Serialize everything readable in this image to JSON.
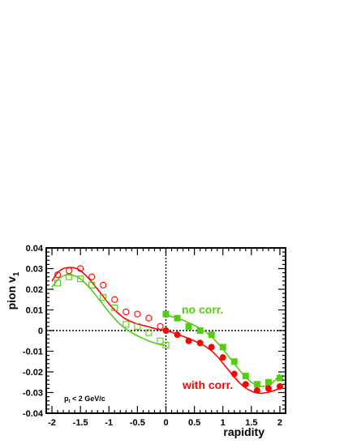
{
  "chart_data": {
    "type": "scatter",
    "xlabel": "rapidity",
    "ylabel_main": "pion v",
    "ylabel_sub": "1",
    "xlim": [
      -2.1,
      2.1
    ],
    "ylim": [
      -0.04,
      0.04
    ],
    "x_ticks": [
      "-2",
      "-1.5",
      "-1",
      "-0.5",
      "0",
      "0.5",
      "1",
      "1.5",
      "2"
    ],
    "x_tick_values": [
      -2,
      -1.5,
      -1,
      -0.5,
      0,
      0.5,
      1,
      1.5,
      2
    ],
    "y_ticks": [
      "0.04",
      "0.03",
      "0.02",
      "0.01",
      "0",
      "-0.01",
      "-0.02",
      "-0.03",
      "-0.04"
    ],
    "y_tick_values": [
      0.04,
      0.03,
      0.02,
      0.01,
      0,
      -0.01,
      -0.02,
      -0.03,
      -0.04
    ],
    "dotted_reference_lines": {
      "x": 0,
      "y": 0
    },
    "colors": {
      "red": "#ff0000",
      "green": "#55cc11",
      "axis": "#000000"
    },
    "annotations": {
      "no_corr": "no corr.",
      "with_corr": "with corr.",
      "cut_prefix": "p",
      "cut_sub": "t",
      "cut_suffix": " < 2 GeV/c"
    },
    "series": [
      {
        "color": "#ff0000",
        "marker": "open-circle",
        "x": [
          -1.9,
          -1.7,
          -1.5,
          -1.3,
          -1.1,
          -0.9,
          -0.7,
          -0.5,
          -0.3,
          -0.1
        ],
        "y": [
          0.027,
          0.029,
          0.03,
          0.026,
          0.022,
          0.015,
          0.009,
          0.008,
          0.006,
          0.002
        ]
      },
      {
        "color": "#55cc11",
        "marker": "open-square",
        "x": [
          -1.9,
          -1.7,
          -1.5,
          -1.3,
          -1.1,
          -0.9,
          -0.7,
          -0.5,
          -0.3,
          -0.1,
          0.0
        ],
        "y": [
          0.023,
          0.026,
          0.025,
          0.022,
          0.016,
          0.011,
          0.003,
          0.002,
          -0.001,
          -0.005,
          -0.007
        ]
      },
      {
        "color": "#55cc11",
        "marker": "filled-square",
        "x": [
          0.0,
          0.2,
          0.4,
          0.6,
          0.8,
          1.0,
          1.2,
          1.4,
          1.6,
          1.8,
          2.0
        ],
        "y": [
          0.008,
          0.006,
          0.002,
          0.0,
          -0.002,
          -0.008,
          -0.015,
          -0.022,
          -0.026,
          -0.025,
          -0.023
        ]
      },
      {
        "color": "#ff0000",
        "marker": "filled-circle",
        "x": [
          0.0,
          0.2,
          0.4,
          0.6,
          0.8,
          1.0,
          1.2,
          1.4,
          1.6,
          1.8,
          2.0
        ],
        "y": [
          0.0,
          -0.002,
          -0.005,
          -0.006,
          -0.008,
          -0.013,
          -0.021,
          -0.026,
          -0.029,
          -0.028,
          -0.027
        ]
      }
    ],
    "fit_curves": [
      {
        "color": "#ff0000",
        "x": [
          -2.0,
          -1.9,
          -1.8,
          -1.7,
          -1.6,
          -1.5,
          -1.4,
          -1.3,
          -1.2,
          -1.1,
          -1.0,
          -0.9,
          -0.8,
          -0.7,
          -0.6,
          -0.5,
          -0.4,
          -0.3,
          -0.2,
          -0.1,
          0.0
        ],
        "y": [
          0.024,
          0.028,
          0.03,
          0.0305,
          0.0303,
          0.029,
          0.0265,
          0.0235,
          0.02,
          0.0165,
          0.013,
          0.01,
          0.0075,
          0.0055,
          0.0042,
          0.0032,
          0.0025,
          0.0018,
          0.001,
          0.0004,
          0.0
        ]
      },
      {
        "color": "#55cc11",
        "x": [
          -2.0,
          -1.9,
          -1.8,
          -1.7,
          -1.6,
          -1.5,
          -1.4,
          -1.3,
          -1.2,
          -1.1,
          -1.0,
          -0.9,
          -0.8,
          -0.7,
          -0.6,
          -0.5,
          -0.4,
          -0.3,
          -0.2,
          -0.1,
          0.0
        ],
        "y": [
          0.021,
          0.0245,
          0.0265,
          0.027,
          0.0265,
          0.025,
          0.0225,
          0.0195,
          0.016,
          0.0125,
          0.009,
          0.0058,
          0.003,
          0.0008,
          -0.001,
          -0.0025,
          -0.0038,
          -0.005,
          -0.006,
          -0.0068,
          -0.0072
        ]
      },
      {
        "color": "#55cc11",
        "x": [
          0.0,
          0.1,
          0.2,
          0.3,
          0.4,
          0.5,
          0.6,
          0.7,
          0.8,
          0.9,
          1.0,
          1.1,
          1.2,
          1.3,
          1.4,
          1.5,
          1.6,
          1.7,
          1.8,
          1.9,
          2.0
        ],
        "y": [
          0.0072,
          0.0068,
          0.006,
          0.005,
          0.0038,
          0.0025,
          0.001,
          -0.0008,
          -0.003,
          -0.0058,
          -0.009,
          -0.0125,
          -0.016,
          -0.0195,
          -0.0225,
          -0.025,
          -0.0265,
          -0.027,
          -0.0265,
          -0.0245,
          -0.021
        ]
      },
      {
        "color": "#ff0000",
        "x": [
          0.0,
          0.1,
          0.2,
          0.3,
          0.4,
          0.5,
          0.6,
          0.7,
          0.8,
          0.9,
          1.0,
          1.1,
          1.2,
          1.3,
          1.4,
          1.5,
          1.6,
          1.7,
          1.8,
          1.9,
          2.0
        ],
        "y": [
          0.0,
          -0.0008,
          -0.0018,
          -0.0028,
          -0.0038,
          -0.005,
          -0.0062,
          -0.0078,
          -0.0098,
          -0.0125,
          -0.0158,
          -0.0192,
          -0.0225,
          -0.0255,
          -0.0278,
          -0.0293,
          -0.0302,
          -0.0303,
          -0.0298,
          -0.029,
          -0.028
        ]
      }
    ]
  }
}
